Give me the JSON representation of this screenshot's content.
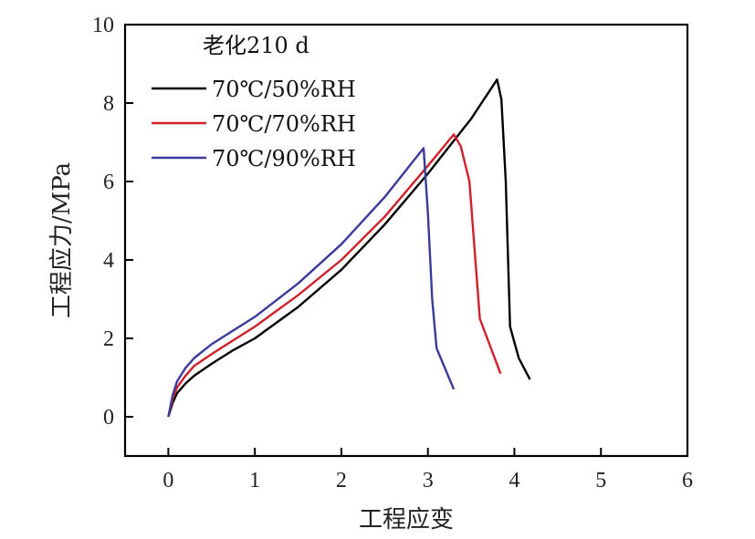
{
  "chart_data": {
    "type": "line",
    "title": "",
    "xlabel": "工程应变",
    "ylabel": "工程应力/MPa",
    "xlim": [
      -0.5,
      6
    ],
    "ylim": [
      -1,
      10
    ],
    "xticks": [
      "0",
      "1",
      "2",
      "3",
      "4",
      "5",
      "6"
    ],
    "yticks": [
      "0",
      "2",
      "4",
      "6",
      "8",
      "10"
    ],
    "grid": false,
    "legend_title": "老化210 d",
    "legend_position": "top-left",
    "series": [
      {
        "name": "70℃/50%RH",
        "color": "#000000",
        "points": [
          [
            0,
            0
          ],
          [
            0.05,
            0.35
          ],
          [
            0.1,
            0.6
          ],
          [
            0.2,
            0.85
          ],
          [
            0.3,
            1.05
          ],
          [
            0.5,
            1.35
          ],
          [
            0.75,
            1.7
          ],
          [
            1.0,
            2.0
          ],
          [
            1.5,
            2.8
          ],
          [
            2.0,
            3.75
          ],
          [
            2.5,
            4.9
          ],
          [
            3.0,
            6.2
          ],
          [
            3.5,
            7.6
          ],
          [
            3.8,
            8.6
          ],
          [
            3.85,
            8.1
          ],
          [
            3.9,
            6.0
          ],
          [
            3.95,
            2.3
          ],
          [
            4.05,
            1.5
          ],
          [
            4.18,
            0.95
          ]
        ]
      },
      {
        "name": "70℃/70%RH",
        "color": "#d0202a",
        "points": [
          [
            0,
            0
          ],
          [
            0.05,
            0.45
          ],
          [
            0.1,
            0.75
          ],
          [
            0.2,
            1.05
          ],
          [
            0.3,
            1.3
          ],
          [
            0.5,
            1.6
          ],
          [
            0.75,
            1.95
          ],
          [
            1.0,
            2.3
          ],
          [
            1.5,
            3.1
          ],
          [
            2.0,
            4.0
          ],
          [
            2.5,
            5.1
          ],
          [
            3.0,
            6.4
          ],
          [
            3.3,
            7.2
          ],
          [
            3.38,
            6.9
          ],
          [
            3.48,
            6.0
          ],
          [
            3.6,
            2.5
          ],
          [
            3.84,
            1.1
          ]
        ]
      },
      {
        "name": "70℃/90%RH",
        "color": "#3a3a9a",
        "points": [
          [
            0,
            0
          ],
          [
            0.05,
            0.55
          ],
          [
            0.1,
            0.9
          ],
          [
            0.2,
            1.25
          ],
          [
            0.3,
            1.5
          ],
          [
            0.5,
            1.85
          ],
          [
            0.75,
            2.2
          ],
          [
            1.0,
            2.55
          ],
          [
            1.5,
            3.4
          ],
          [
            2.0,
            4.4
          ],
          [
            2.5,
            5.6
          ],
          [
            2.95,
            6.85
          ],
          [
            3.0,
            5.2
          ],
          [
            3.05,
            3.0
          ],
          [
            3.1,
            1.75
          ],
          [
            3.3,
            0.7
          ]
        ]
      }
    ]
  }
}
